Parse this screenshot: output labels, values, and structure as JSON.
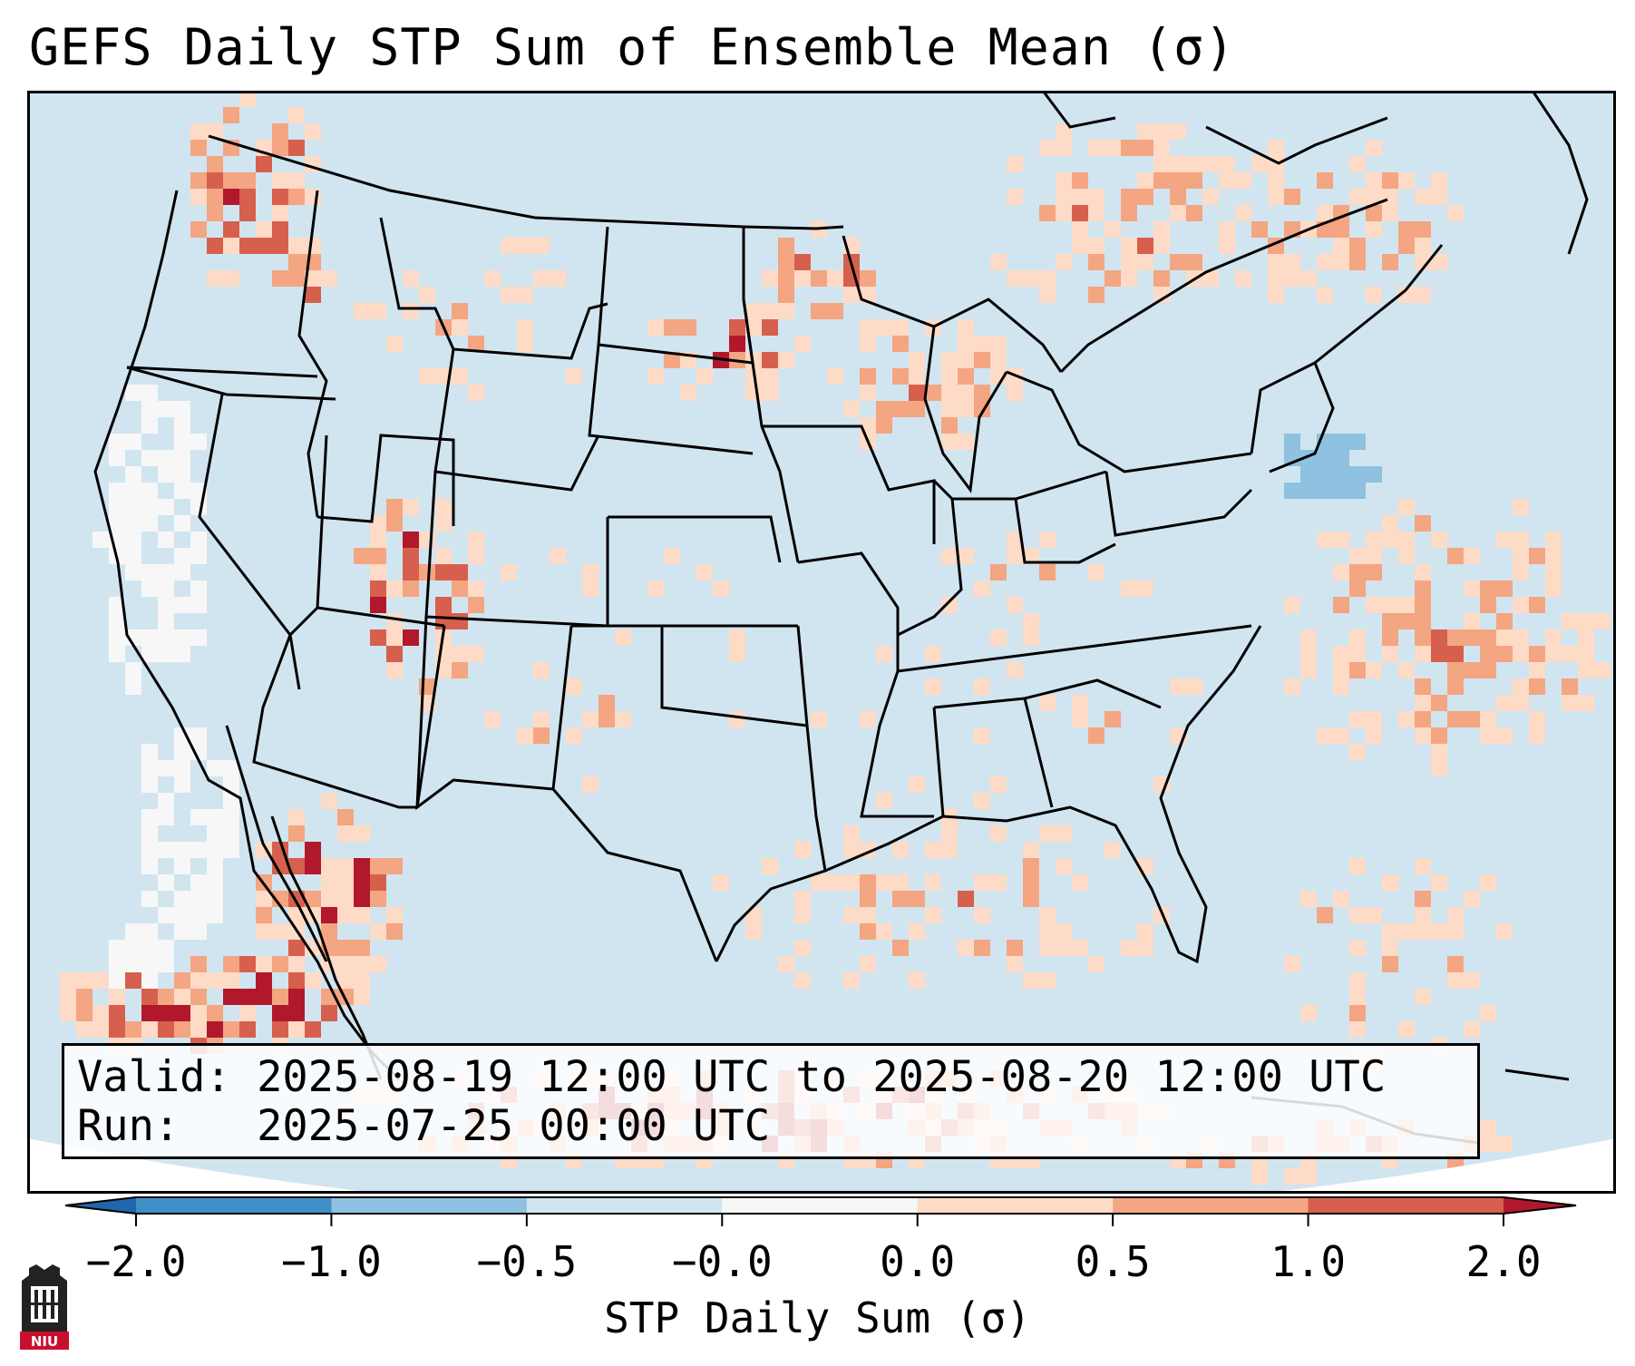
{
  "title": "GEFS Daily STP Sum of Ensemble Mean (σ)",
  "info": {
    "valid_line": "Valid: 2025-08-19 12:00 UTC to 2025-08-20 12:00 UTC",
    "run_line": "Run:   2025-07-25 00:00 UTC"
  },
  "colorbar": {
    "label": "STP Daily Sum (σ)",
    "ticks": [
      "−2.0",
      "−1.0",
      "−0.5",
      "−0.0",
      "0.0",
      "0.5",
      "1.0",
      "2.0"
    ],
    "bins": [
      {
        "from": -2.0,
        "to": -1.0,
        "color": "#3f8ec6"
      },
      {
        "from": -1.0,
        "to": -0.5,
        "color": "#8fc1e0"
      },
      {
        "from": -0.5,
        "to": -0.0,
        "color": "#d1e5f0"
      },
      {
        "from": -0.0,
        "to": 0.0,
        "color": "#f7f7f7"
      },
      {
        "from": 0.0,
        "to": 0.5,
        "color": "#fddbc7"
      },
      {
        "from": 0.5,
        "to": 1.0,
        "color": "#f4a582"
      },
      {
        "from": 1.0,
        "to": 2.0,
        "color": "#d6604d"
      }
    ],
    "under_color": "#2166ac",
    "over_color": "#b2182b"
  },
  "map": {
    "ocean_land_base_color": "#d1e5f0",
    "anomaly_regions": [
      {
        "name": "Pacific Northwest",
        "level": "high"
      },
      {
        "name": "Northern Plains",
        "level": "high"
      },
      {
        "name": "Upper Midwest",
        "level": "high"
      },
      {
        "name": "Arizona",
        "level": "high"
      },
      {
        "name": "Baja / Gulf of California",
        "level": "high"
      },
      {
        "name": "Southern Ontario / Quebec",
        "level": "moderate"
      },
      {
        "name": "Western Atlantic",
        "level": "moderate"
      },
      {
        "name": "Gulf of Mexico",
        "level": "moderate"
      },
      {
        "name": "California coast",
        "level": "neutral"
      },
      {
        "name": "New England coast",
        "level": "low"
      }
    ]
  },
  "logo": {
    "text": "NIU"
  }
}
